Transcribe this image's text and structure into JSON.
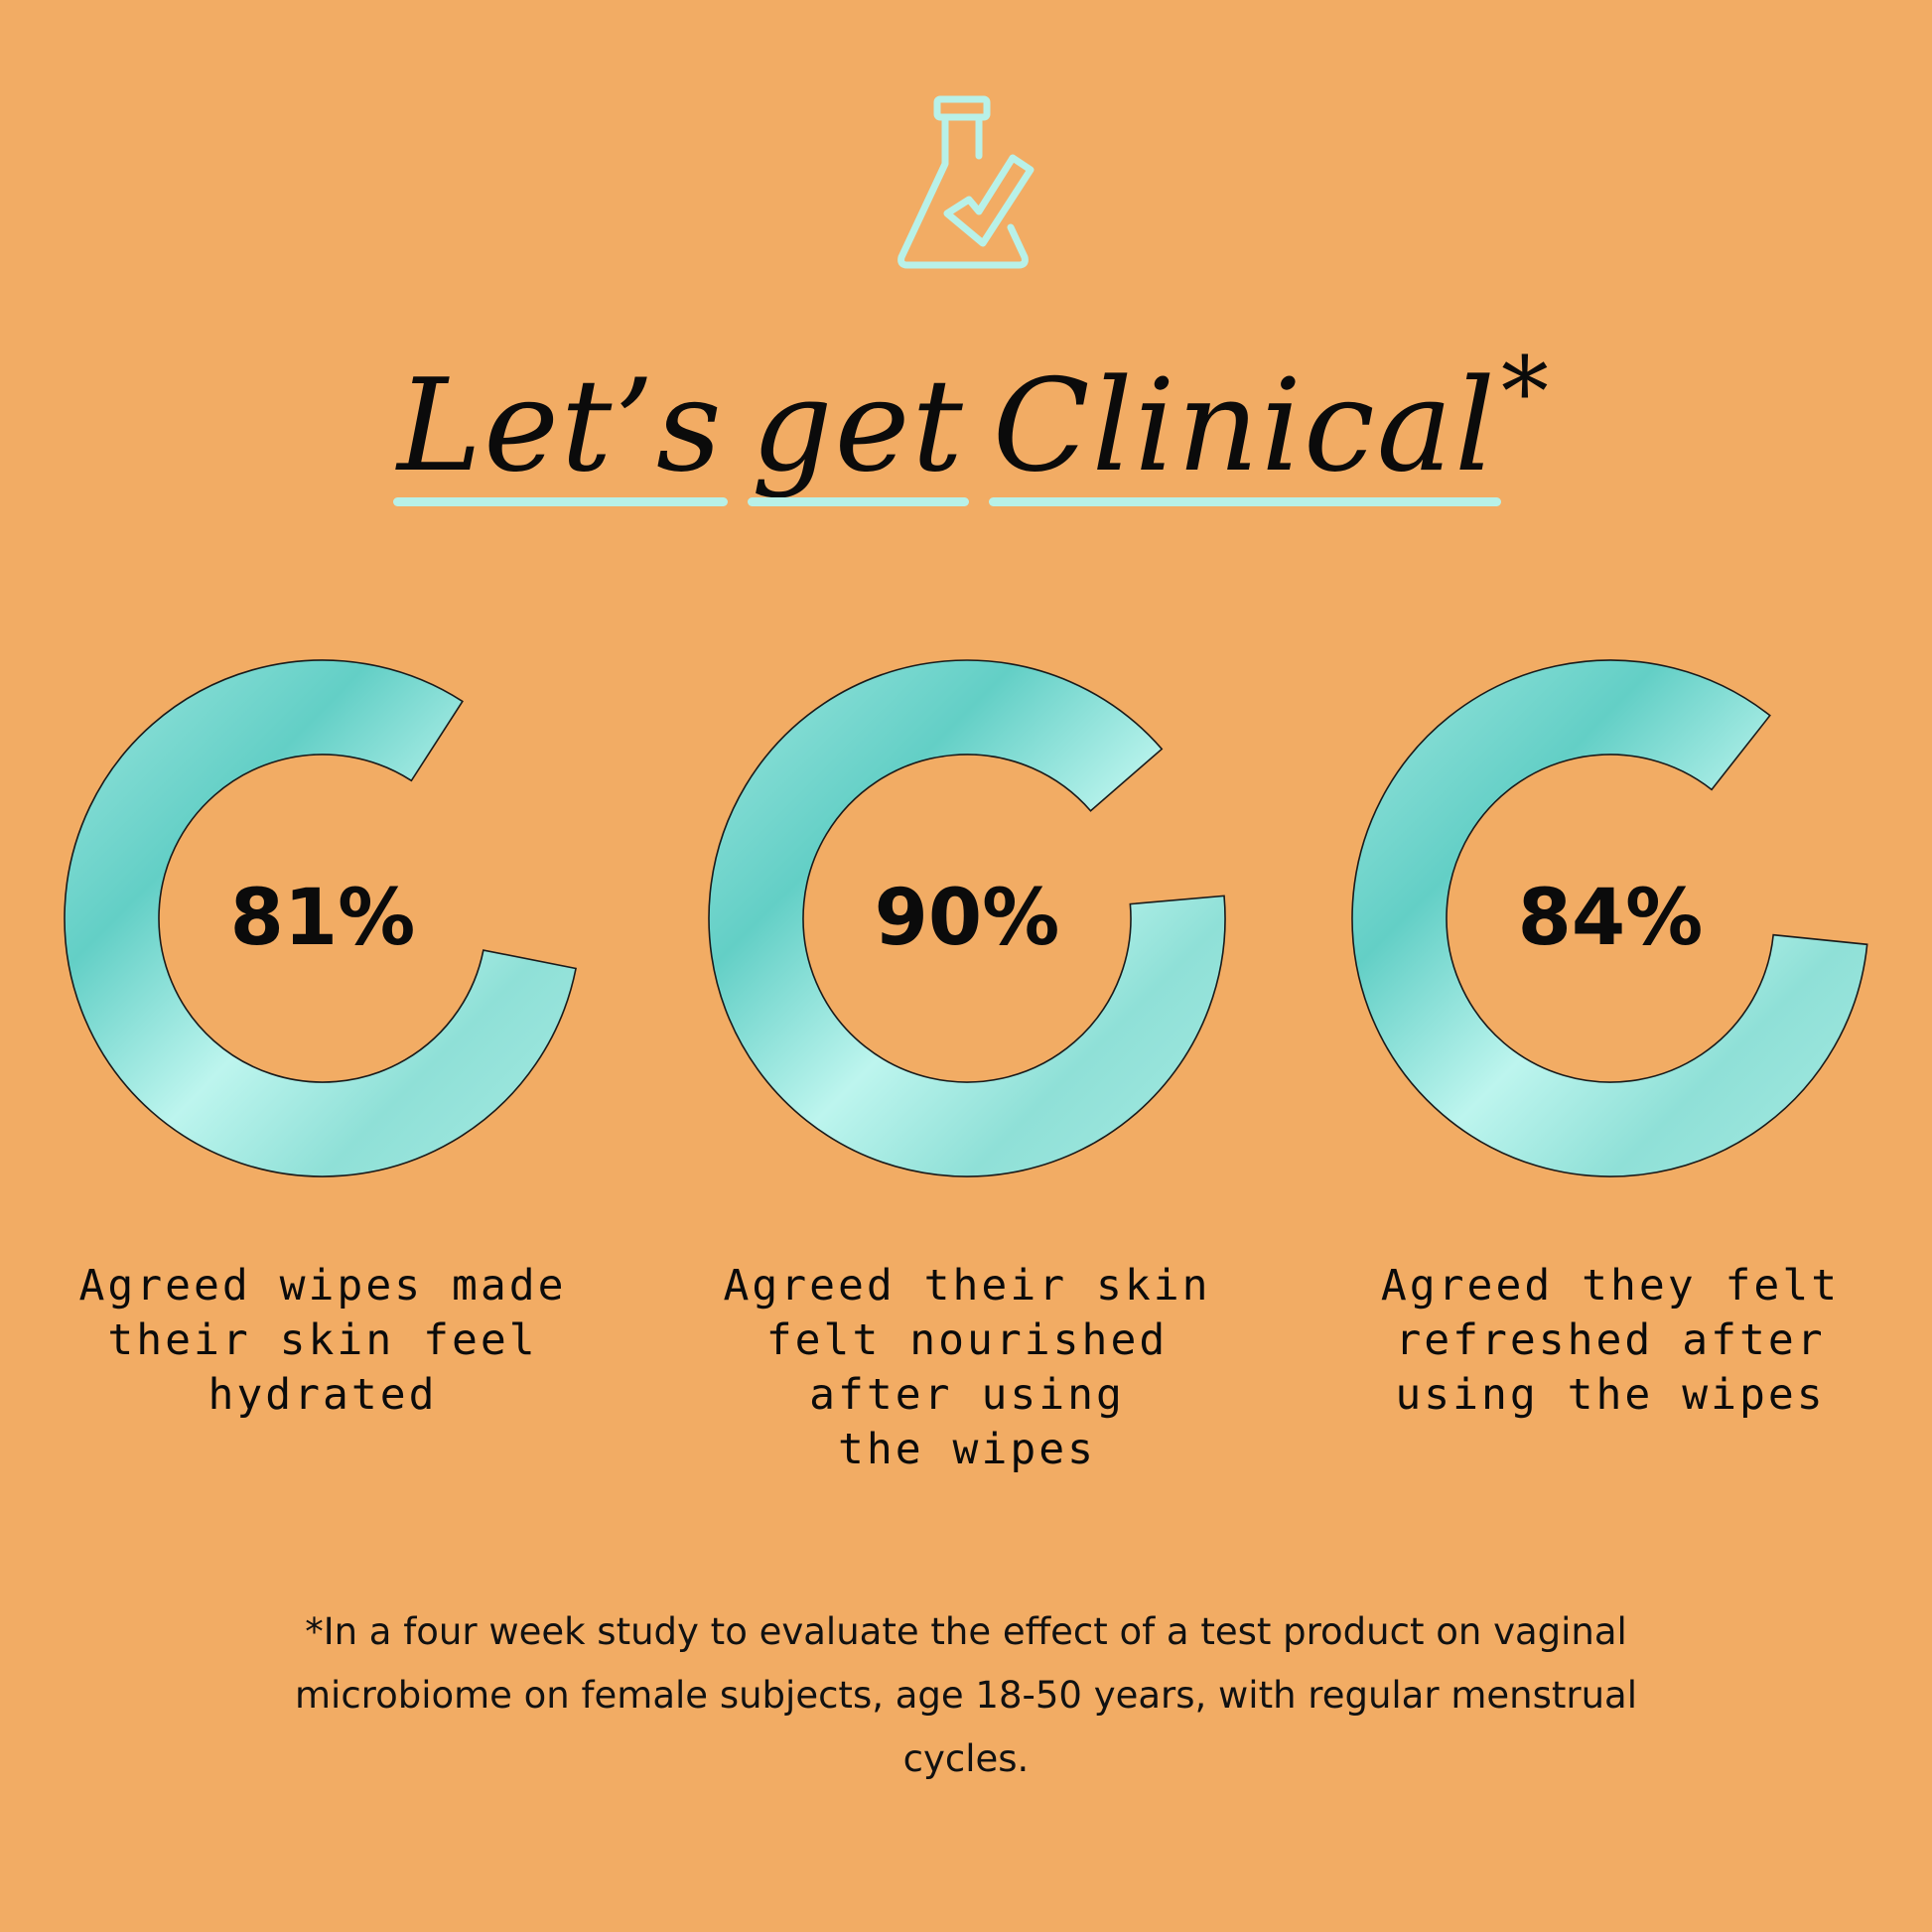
{
  "title": {
    "words": [
      "Let’s",
      "get",
      "Clinical"
    ],
    "asterisk": "*"
  },
  "icon": "flask-check-icon",
  "colors": {
    "background": "#F2AC64",
    "ring_light": "#BDF5EE",
    "ring_dark": "#63CFC6",
    "underline": "#B8F1E8",
    "text": "#0b0b0b"
  },
  "chart_data": {
    "type": "donut",
    "series": [
      {
        "value": 81,
        "label": "81%",
        "description": "Agreed wipes made\ntheir skin feel\nhydrated"
      },
      {
        "value": 90,
        "label": "90%",
        "description": "Agreed their skin\nfelt nourished\nafter using\nthe wipes"
      },
      {
        "value": 84,
        "label": "84%",
        "description": "Agreed they felt\nrefreshed after\nusing the wipes"
      }
    ]
  },
  "footnote": "*In a four week study to evaluate the effect of a test product on vaginal microbiome on female subjects, age 18-50 years, with regular menstrual cycles."
}
